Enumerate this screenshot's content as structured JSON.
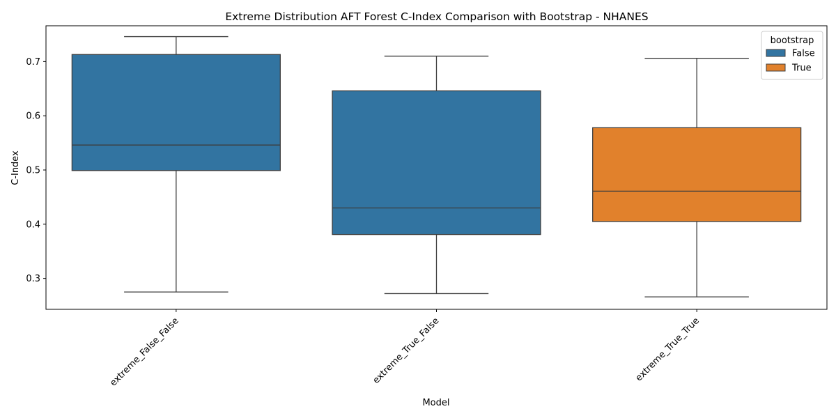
{
  "chart_data": {
    "type": "boxplot",
    "title": "Extreme Distribution AFT Forest C-Index Comparison with Bootstrap - NHANES",
    "xlabel": "Model",
    "ylabel": "C-Index",
    "ylim": [
      0.243,
      0.766
    ],
    "yticks": [
      0.3,
      0.4,
      0.5,
      0.6,
      0.7
    ],
    "ytick_labels": [
      "0.3",
      "0.4",
      "0.5",
      "0.6",
      "0.7"
    ],
    "grid": false,
    "categories": [
      "extreme_False_False",
      "extreme_True_False",
      "extreme_True_True"
    ],
    "boxes": [
      {
        "category": "extreme_False_False",
        "hue": "False",
        "whisker_low": 0.275,
        "q1": 0.499,
        "median": 0.546,
        "q3": 0.713,
        "whisker_high": 0.746
      },
      {
        "category": "extreme_True_False",
        "hue": "False",
        "whisker_low": 0.272,
        "q1": 0.381,
        "median": 0.43,
        "q3": 0.646,
        "whisker_high": 0.71
      },
      {
        "category": "extreme_True_True",
        "hue": "True",
        "whisker_low": 0.266,
        "q1": 0.405,
        "median": 0.461,
        "q3": 0.578,
        "whisker_high": 0.706
      }
    ],
    "legend": {
      "title": "bootstrap",
      "placement": "top-right",
      "entries": [
        {
          "label": "False",
          "color": "#3274a1"
        },
        {
          "label": "True",
          "color": "#e1812c"
        }
      ]
    },
    "colors": {
      "False": "#3274a1",
      "True": "#e1812c",
      "lines": "#3d3d3d"
    }
  }
}
